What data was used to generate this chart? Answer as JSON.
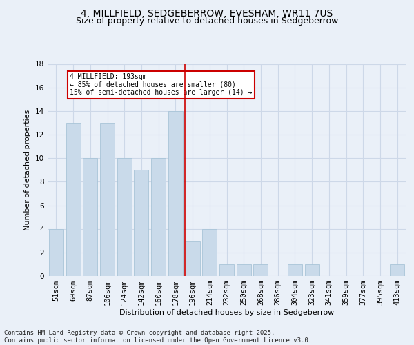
{
  "title1": "4, MILLFIELD, SEDGEBERROW, EVESHAM, WR11 7US",
  "title2": "Size of property relative to detached houses in Sedgeberrow",
  "xlabel": "Distribution of detached houses by size in Sedgeberrow",
  "ylabel": "Number of detached properties",
  "categories": [
    "51sqm",
    "69sqm",
    "87sqm",
    "106sqm",
    "124sqm",
    "142sqm",
    "160sqm",
    "178sqm",
    "196sqm",
    "214sqm",
    "232sqm",
    "250sqm",
    "268sqm",
    "286sqm",
    "304sqm",
    "323sqm",
    "341sqm",
    "359sqm",
    "377sqm",
    "395sqm",
    "413sqm"
  ],
  "values": [
    4,
    13,
    10,
    13,
    10,
    9,
    10,
    14,
    3,
    4,
    1,
    1,
    1,
    0,
    1,
    1,
    0,
    0,
    0,
    0,
    1
  ],
  "bar_color": "#c9daea",
  "bar_edge_color": "#a8c4d8",
  "grid_color": "#cdd8e8",
  "background_color": "#eaf0f8",
  "vline_color": "#cc0000",
  "annotation_text": "4 MILLFIELD: 193sqm\n← 85% of detached houses are smaller (80)\n15% of semi-detached houses are larger (14) →",
  "annotation_box_color": "#ffffff",
  "annotation_box_edge": "#cc0000",
  "ylim": [
    0,
    18
  ],
  "yticks": [
    0,
    2,
    4,
    6,
    8,
    10,
    12,
    14,
    16,
    18
  ],
  "title_fontsize": 10,
  "subtitle_fontsize": 9,
  "axis_label_fontsize": 8,
  "tick_fontsize": 7.5,
  "footnote_fontsize": 6.5,
  "footnote": "Contains HM Land Registry data © Crown copyright and database right 2025.\nContains public sector information licensed under the Open Government Licence v3.0."
}
